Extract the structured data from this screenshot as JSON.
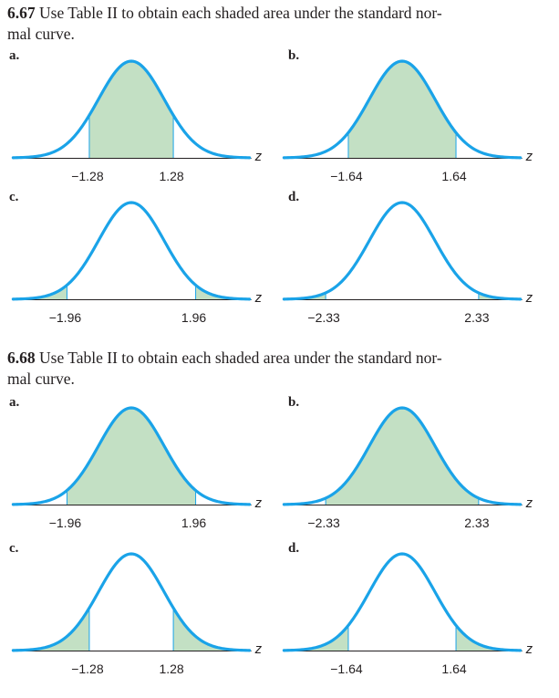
{
  "problems": [
    {
      "number": "6.67",
      "text_line1": "Use Table II to obtain each shaded area under the standard nor-",
      "text_line2": "mal curve.",
      "parts": [
        {
          "label": "a.",
          "shade": "between",
          "z1": -1.28,
          "z2": 1.28,
          "tick1": "−1.28",
          "tick2": "1.28",
          "axis": "z"
        },
        {
          "label": "b.",
          "shade": "between",
          "z1": -1.64,
          "z2": 1.64,
          "tick1": "−1.64",
          "tick2": "1.64",
          "axis": "z"
        },
        {
          "label": "c.",
          "shade": "tails",
          "z1": -1.96,
          "z2": 1.96,
          "tick1": "−1.96",
          "tick2": "1.96",
          "axis": "z"
        },
        {
          "label": "d.",
          "shade": "tails",
          "z1": -2.33,
          "z2": 2.33,
          "tick1": "−2.33",
          "tick2": "2.33",
          "axis": "z"
        }
      ]
    },
    {
      "number": "6.68",
      "text_line1": "Use Table II to obtain each shaded area under the standard nor-",
      "text_line2": "mal curve.",
      "parts": [
        {
          "label": "a.",
          "shade": "between",
          "z1": -1.96,
          "z2": 1.96,
          "tick1": "−1.96",
          "tick2": "1.96",
          "axis": "z"
        },
        {
          "label": "b.",
          "shade": "between",
          "z1": -2.33,
          "z2": 2.33,
          "tick1": "−2.33",
          "tick2": "2.33",
          "axis": "z"
        },
        {
          "label": "c.",
          "shade": "tails",
          "z1": -1.28,
          "z2": 1.28,
          "tick1": "−1.28",
          "tick2": "1.28",
          "axis": "z"
        },
        {
          "label": "d.",
          "shade": "tails",
          "z1": -1.64,
          "z2": 1.64,
          "tick1": "−1.64",
          "tick2": "1.64",
          "axis": "z"
        }
      ]
    }
  ],
  "colors": {
    "curve": "#1aa3e8",
    "fill": "#c3e0c4",
    "axis": "#231f20",
    "text": "#231f20"
  }
}
